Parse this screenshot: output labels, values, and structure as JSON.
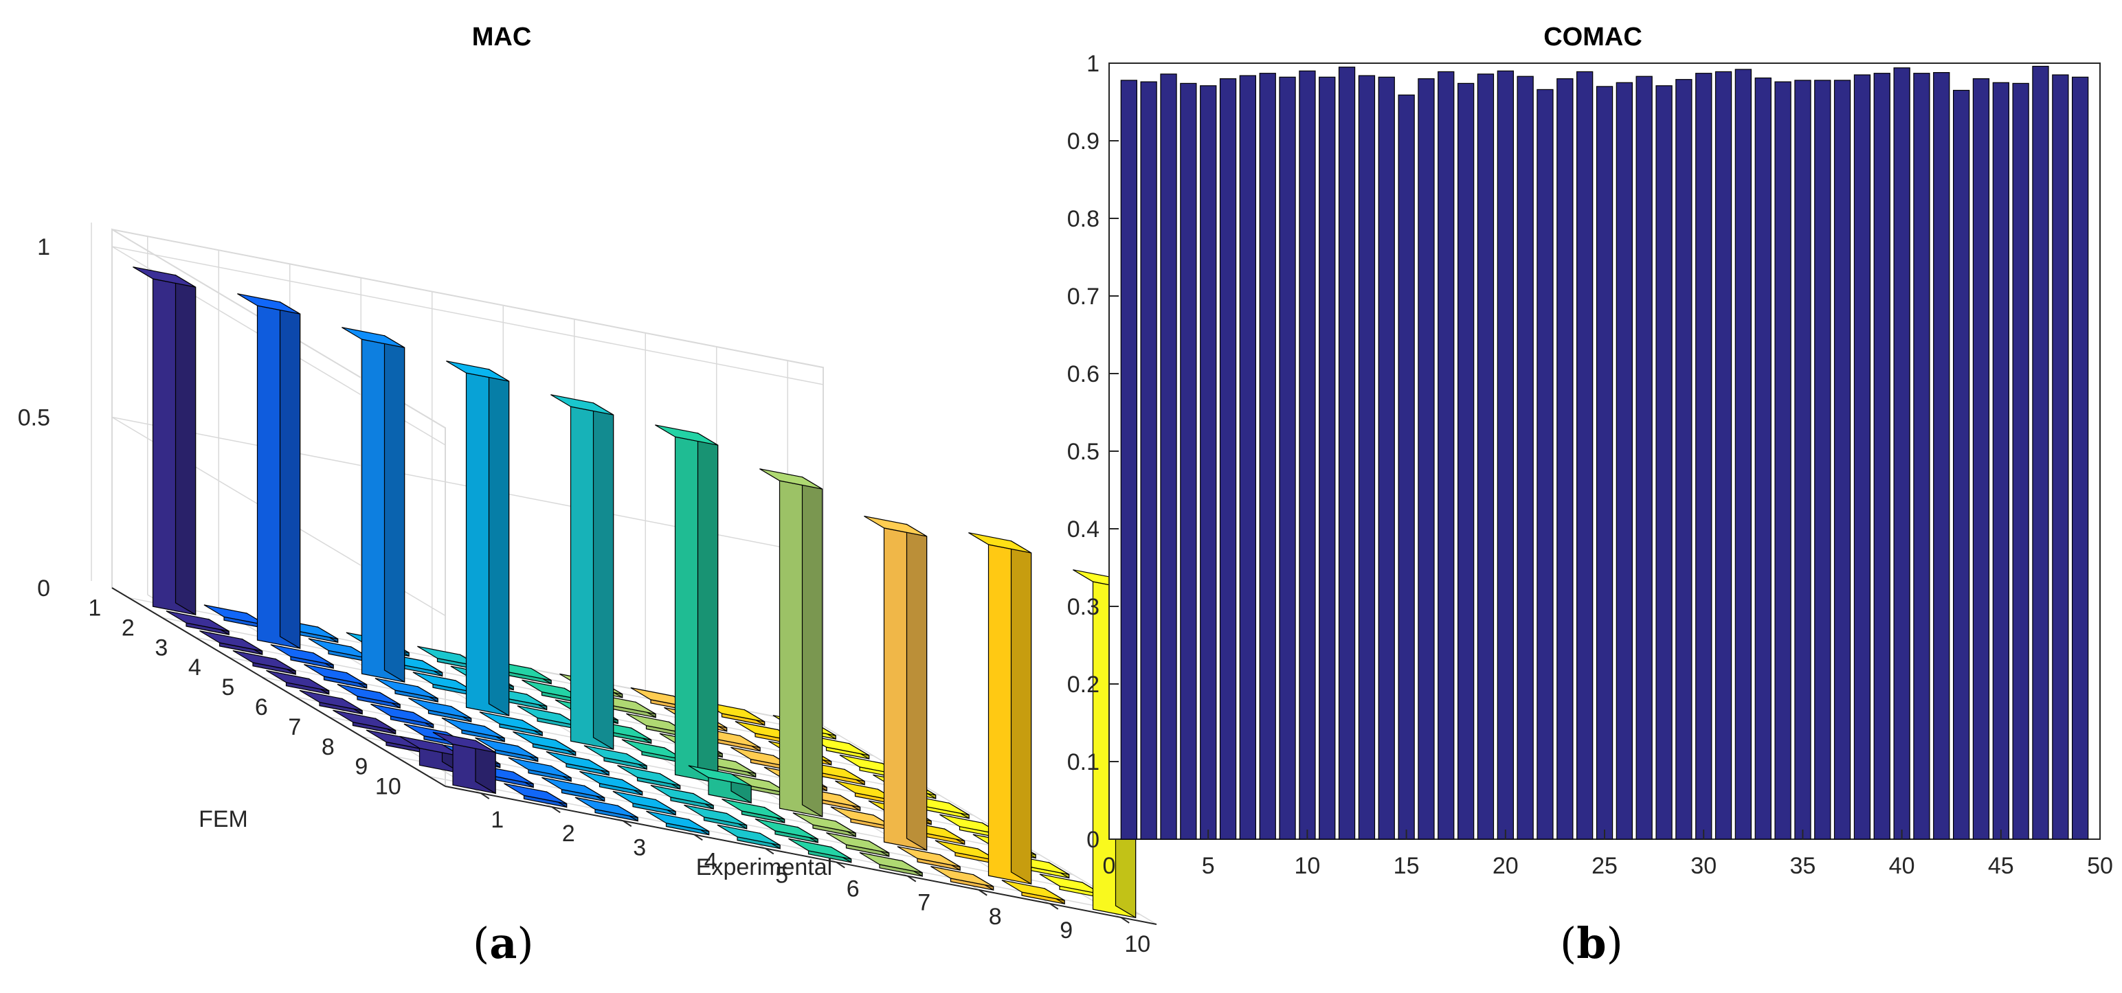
{
  "chart_data": [
    {
      "type": "bar3d",
      "title": "MAC",
      "panel_label": "a",
      "xlabel": "Experimental",
      "ylabel": "FEM",
      "x_categories": [
        "1",
        "2",
        "3",
        "4",
        "5",
        "6",
        "7",
        "8",
        "9",
        "10"
      ],
      "y_categories": [
        "1",
        "2",
        "3",
        "4",
        "5",
        "6",
        "7",
        "8",
        "9",
        "10"
      ],
      "zticks": [
        "0",
        "0.5",
        "1"
      ],
      "zlim": [
        0,
        1
      ],
      "grid": true,
      "colormap": "parula",
      "diagonal_values": [
        0.96,
        0.98,
        0.98,
        0.98,
        0.98,
        0.99,
        0.96,
        0.92,
        0.97,
        0.96
      ],
      "offdiag_values": [
        [
          0,
          0.01,
          0.01,
          0.01,
          0.01,
          0.01,
          0.01,
          0.01,
          0.01,
          0.01
        ],
        [
          0.01,
          0,
          0.01,
          0.01,
          0.01,
          0.01,
          0.01,
          0.01,
          0.01,
          0.01
        ],
        [
          0.01,
          0.01,
          0,
          0.01,
          0.01,
          0.01,
          0.01,
          0.01,
          0.01,
          0.01
        ],
        [
          0.01,
          0.01,
          0.01,
          0,
          0.01,
          0.01,
          0.01,
          0.01,
          0.01,
          0.01
        ],
        [
          0.01,
          0.01,
          0.01,
          0.01,
          0,
          0.01,
          0.01,
          0.01,
          0.01,
          0.01
        ],
        [
          0.01,
          0.01,
          0.01,
          0.01,
          0.01,
          0,
          0.01,
          0.01,
          0.01,
          0.01
        ],
        [
          0.01,
          0.01,
          0.01,
          0.01,
          0.01,
          0.05,
          0,
          0.01,
          0.01,
          0.01
        ],
        [
          0.01,
          0.01,
          0.01,
          0.01,
          0.01,
          0.01,
          0.01,
          0,
          0.01,
          0.01
        ],
        [
          0.05,
          0.01,
          0.01,
          0.01,
          0.01,
          0.01,
          0.01,
          0.01,
          0,
          0.01
        ],
        [
          0.12,
          0.01,
          0.01,
          0.01,
          0.01,
          0.01,
          0.01,
          0.01,
          0.01,
          0
        ]
      ]
    },
    {
      "type": "bar",
      "title": "COMAC",
      "panel_label": "b",
      "xlabel": "",
      "ylabel": "",
      "xlim": [
        0,
        50
      ],
      "ylim": [
        0,
        1
      ],
      "xticks": [
        0,
        5,
        10,
        15,
        20,
        25,
        30,
        35,
        40,
        45,
        50
      ],
      "yticks": [
        0,
        0.1,
        0.2,
        0.3,
        0.4,
        0.5,
        0.6,
        0.7,
        0.8,
        0.9,
        1
      ],
      "bar_color": "#2e2a86",
      "x": [
        1,
        2,
        3,
        4,
        5,
        6,
        7,
        8,
        9,
        10,
        11,
        12,
        13,
        14,
        15,
        16,
        17,
        18,
        19,
        20,
        21,
        22,
        23,
        24,
        25,
        26,
        27,
        28,
        29,
        30,
        31,
        32,
        33,
        34,
        35,
        36,
        37,
        38,
        39,
        40,
        41,
        42,
        43,
        44,
        45,
        46,
        47,
        48,
        49
      ],
      "values": [
        0.978,
        0.976,
        0.986,
        0.974,
        0.971,
        0.98,
        0.984,
        0.987,
        0.982,
        0.99,
        0.982,
        0.995,
        0.984,
        0.982,
        0.959,
        0.98,
        0.989,
        0.974,
        0.986,
        0.99,
        0.983,
        0.966,
        0.98,
        0.989,
        0.97,
        0.975,
        0.983,
        0.971,
        0.979,
        0.987,
        0.989,
        0.992,
        0.981,
        0.976,
        0.978,
        0.978,
        0.978,
        0.985,
        0.987,
        0.994,
        0.987,
        0.988,
        0.965,
        0.98,
        0.975,
        0.974,
        0.996,
        0.985,
        0.982
      ]
    }
  ],
  "colors": {
    "parula": [
      "#352a87",
      "#0f5cdd",
      "#0d7fe0",
      "#08a2d6",
      "#17b2b8",
      "#1fbc93",
      "#9cc266",
      "#f0b748",
      "#ffc913",
      "#f9f91e"
    ],
    "frame": "#262626",
    "grid": "#d9d9d9"
  }
}
